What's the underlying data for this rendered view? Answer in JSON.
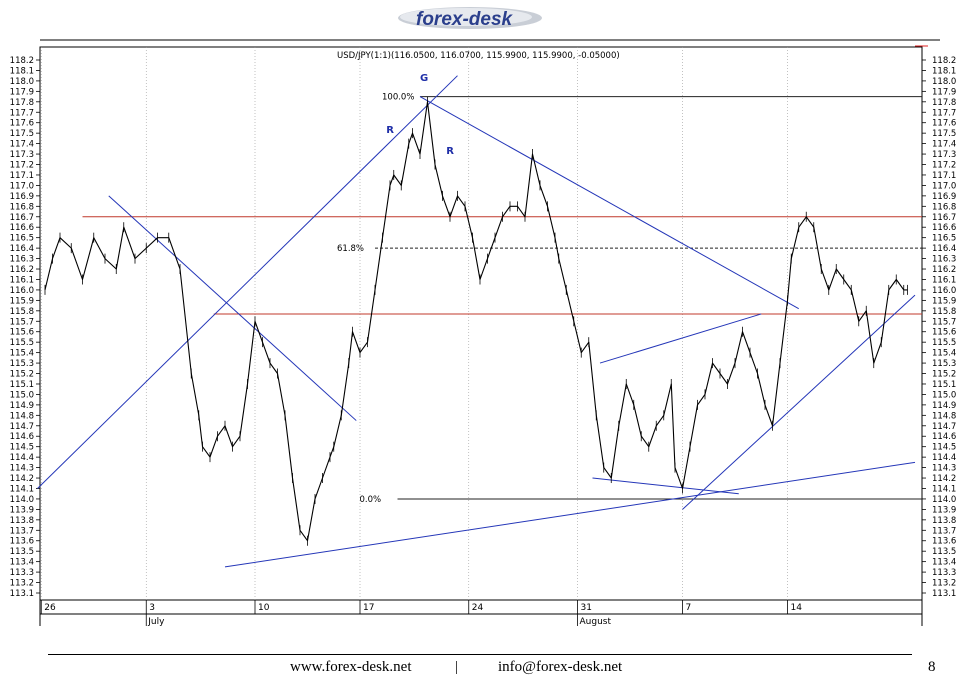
{
  "header": {
    "logo_text": "forex-desk"
  },
  "chart_data": {
    "type": "line",
    "title": "USD/JPY(1:1)(116.0500, 116.0700, 115.9900, 115.9900, -0.05000)",
    "ylim": [
      113.1,
      118.2
    ],
    "y_ticks": [
      "118.2",
      "118.1",
      "118.0",
      "117.9",
      "117.8",
      "117.7",
      "117.6",
      "117.5",
      "117.4",
      "117.3",
      "117.2",
      "117.1",
      "117.0",
      "116.9",
      "116.8",
      "116.7",
      "116.6",
      "116.5",
      "116.4",
      "116.3",
      "116.2",
      "116.1",
      "116.0",
      "115.9",
      "115.8",
      "115.7",
      "115.6",
      "115.5",
      "115.4",
      "115.3",
      "115.2",
      "115.1",
      "115.0",
      "114.9",
      "114.8",
      "114.7",
      "114.6",
      "114.5",
      "114.4",
      "114.3",
      "114.2",
      "114.1",
      "114.0",
      "113.9",
      "113.8",
      "113.7",
      "113.6",
      "113.5",
      "113.4",
      "113.3",
      "113.2",
      "113.1"
    ],
    "x_labels": [
      "26",
      "3",
      "10",
      "17",
      "24",
      "31",
      "7",
      "14"
    ],
    "month_labels": [
      "July",
      "August"
    ],
    "grid": true,
    "series": [
      {
        "x": [
          0,
          2,
          4,
          7,
          10,
          13,
          16,
          19,
          21,
          24,
          27,
          30,
          33,
          36,
          39,
          41,
          42,
          44,
          46,
          48,
          50,
          52,
          54,
          56,
          58,
          60,
          62,
          64,
          66,
          68,
          70,
          72,
          74,
          76,
          77,
          79,
          81,
          82,
          84,
          86,
          88,
          90,
          92,
          93,
          95,
          97,
          98,
          100,
          102,
          104,
          106,
          108,
          110,
          112,
          114,
          116,
          118,
          120,
          122,
          124,
          126,
          128,
          130,
          132,
          134,
          136,
          137,
          139,
          141,
          143,
          145,
          147,
          149,
          151,
          153,
          155,
          157,
          159,
          161,
          163,
          165,
          167,
          168,
          170,
          172,
          174,
          176,
          178,
          180,
          182,
          184,
          186,
          188,
          190,
          192,
          194,
          196,
          198,
          199,
          201,
          203,
          205,
          207,
          209,
          211,
          213,
          215,
          217,
          219,
          221,
          223,
          225,
          227,
          229,
          230
        ],
        "y": [
          116.0,
          116.3,
          116.5,
          116.4,
          116.1,
          116.5,
          116.3,
          116.2,
          116.6,
          116.3,
          116.4,
          116.5,
          116.5,
          116.2,
          115.2,
          114.8,
          114.5,
          114.4,
          114.6,
          114.7,
          114.5,
          114.6,
          115.1,
          115.7,
          115.5,
          115.3,
          115.2,
          114.8,
          114.2,
          113.7,
          113.6,
          114.0,
          114.2,
          114.4,
          114.5,
          114.8,
          115.3,
          115.6,
          115.4,
          115.5,
          116.0,
          116.5,
          117.0,
          117.1,
          117.0,
          117.4,
          117.5,
          117.3,
          117.8,
          117.2,
          116.9,
          116.7,
          116.9,
          116.8,
          116.5,
          116.1,
          116.3,
          116.5,
          116.7,
          116.8,
          116.8,
          116.7,
          117.3,
          117.0,
          116.8,
          116.5,
          116.3,
          116.0,
          115.7,
          115.4,
          115.5,
          114.8,
          114.3,
          114.2,
          114.7,
          115.1,
          114.9,
          114.6,
          114.5,
          114.7,
          114.8,
          115.1,
          114.3,
          114.1,
          114.5,
          114.9,
          115.0,
          115.3,
          115.2,
          115.1,
          115.3,
          115.6,
          115.4,
          115.2,
          114.9,
          114.7,
          115.3,
          115.9,
          116.3,
          116.6,
          116.7,
          116.6,
          116.2,
          116.0,
          116.2,
          116.1,
          116.0,
          115.7,
          115.8,
          115.3,
          115.5,
          116.0,
          116.1,
          116.0,
          116.0
        ]
      }
    ],
    "fib_levels": [
      {
        "label": "100.0%",
        "value": 117.85
      },
      {
        "label": "61.8%",
        "value": 116.4
      },
      {
        "label": "0.0%",
        "value": 114.0
      }
    ],
    "resistance_levels": [
      116.7,
      115.77
    ],
    "trendlines": [
      {
        "from": [
          -2,
          114.1
        ],
        "to": [
          110,
          118.05
        ]
      },
      {
        "from": [
          17,
          116.9
        ],
        "to": [
          83,
          114.75
        ]
      },
      {
        "from": [
          100,
          117.85
        ],
        "to": [
          201,
          115.82
        ]
      },
      {
        "from": [
          48,
          113.35
        ],
        "to": [
          232,
          114.35
        ]
      },
      {
        "from": [
          146,
          114.2
        ],
        "to": [
          185,
          114.05
        ]
      },
      {
        "from": [
          148,
          115.3
        ],
        "to": [
          191,
          115.77
        ]
      },
      {
        "from": [
          170,
          113.9
        ],
        "to": [
          232,
          115.95
        ]
      }
    ],
    "annotations": [
      {
        "text": "G",
        "x": 100,
        "y": 118.0
      },
      {
        "text": "R",
        "x": 91,
        "y": 117.5
      },
      {
        "text": "R",
        "x": 107,
        "y": 117.3
      }
    ]
  },
  "footer": {
    "website": "www.forex-desk.net",
    "separator": "|",
    "email": "info@forex-desk.net",
    "page_number": "8"
  }
}
